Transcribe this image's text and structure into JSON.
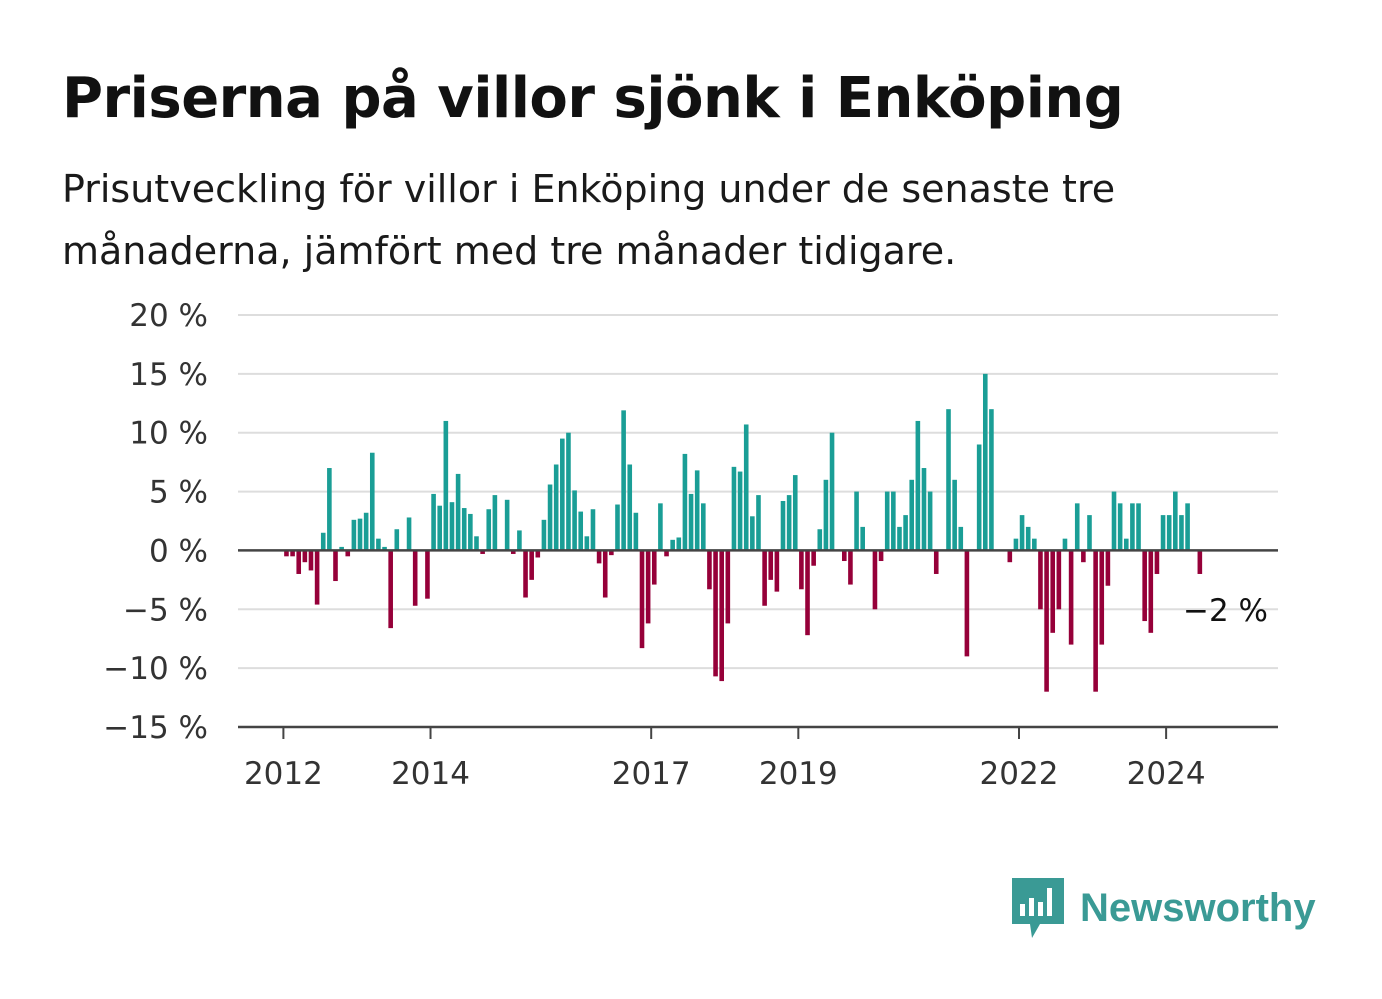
{
  "title": "Priserna på villor sjönk i Enköping",
  "subtitle": "Prisutveckling för villor i Enköping under de senaste tre månaderna, jämfört med tre månader tidigare.",
  "brand": {
    "name": "Newsworthy",
    "icon": "newsworthy-logo-icon",
    "color": "#3a9a95"
  },
  "colors": {
    "positive": "#1a9e96",
    "negative": "#960039",
    "grid": "#dddddd",
    "axis": "#444444"
  },
  "chart_data": {
    "type": "bar",
    "x_start": "2012-01",
    "frequency": "monthly",
    "ylim": [
      -15,
      20
    ],
    "yticks": [
      -15,
      -10,
      -5,
      0,
      5,
      10,
      15,
      20
    ],
    "ytick_labels": [
      "−15 %",
      "−10 %",
      "−5 %",
      "0 %",
      "5 %",
      "10 %",
      "15 %",
      "20 %"
    ],
    "xticks": [
      "2012",
      "2014",
      "2017",
      "2019",
      "2022",
      "2024"
    ],
    "values": [
      -0.5,
      -0.5,
      -2,
      -1,
      -1.7,
      -4.6,
      1.5,
      7,
      -2.6,
      0.3,
      -0.5,
      2.6,
      2.7,
      3.2,
      8.3,
      1,
      0.3,
      -6.6,
      1.8,
      0,
      2.8,
      -4.7,
      0,
      -4.1,
      4.8,
      3.8,
      11,
      4.1,
      6.5,
      3.6,
      3.1,
      1.2,
      -0.3,
      3.5,
      4.7,
      0,
      4.3,
      -0.3,
      1.7,
      -4,
      -2.5,
      -0.6,
      2.6,
      5.6,
      7.3,
      9.5,
      10,
      5.1,
      3.3,
      1.2,
      3.5,
      -1.1,
      -4,
      -0.4,
      3.9,
      11.9,
      7.3,
      3.2,
      -8.3,
      -6.2,
      -2.9,
      4,
      -0.5,
      0.9,
      1.1,
      8.2,
      4.8,
      6.8,
      4,
      -3.3,
      -10.7,
      -11.1,
      -6.2,
      7.1,
      6.7,
      10.7,
      2.9,
      4.7,
      -4.7,
      -2.5,
      -3.5,
      4.2,
      4.7,
      6.4,
      -3.3,
      -7.2,
      -1.3,
      1.8,
      6,
      10,
      0,
      -0.9,
      -2.9,
      5,
      2,
      0,
      -5,
      -0.9,
      5,
      5,
      2,
      3,
      6,
      11,
      7,
      5,
      -2,
      0,
      12,
      6,
      2,
      -9,
      0,
      9,
      15,
      12,
      0,
      0,
      -1,
      1,
      3,
      2,
      1,
      -5,
      -12,
      -7,
      -5,
      1,
      -8,
      4,
      -1,
      3,
      -12,
      -8,
      -3,
      5,
      4,
      1,
      4,
      4,
      -6,
      -7,
      -2,
      3,
      3,
      5,
      3,
      4,
      0,
      -2
    ],
    "annotation": {
      "label": "−2 %",
      "value": -2
    }
  }
}
